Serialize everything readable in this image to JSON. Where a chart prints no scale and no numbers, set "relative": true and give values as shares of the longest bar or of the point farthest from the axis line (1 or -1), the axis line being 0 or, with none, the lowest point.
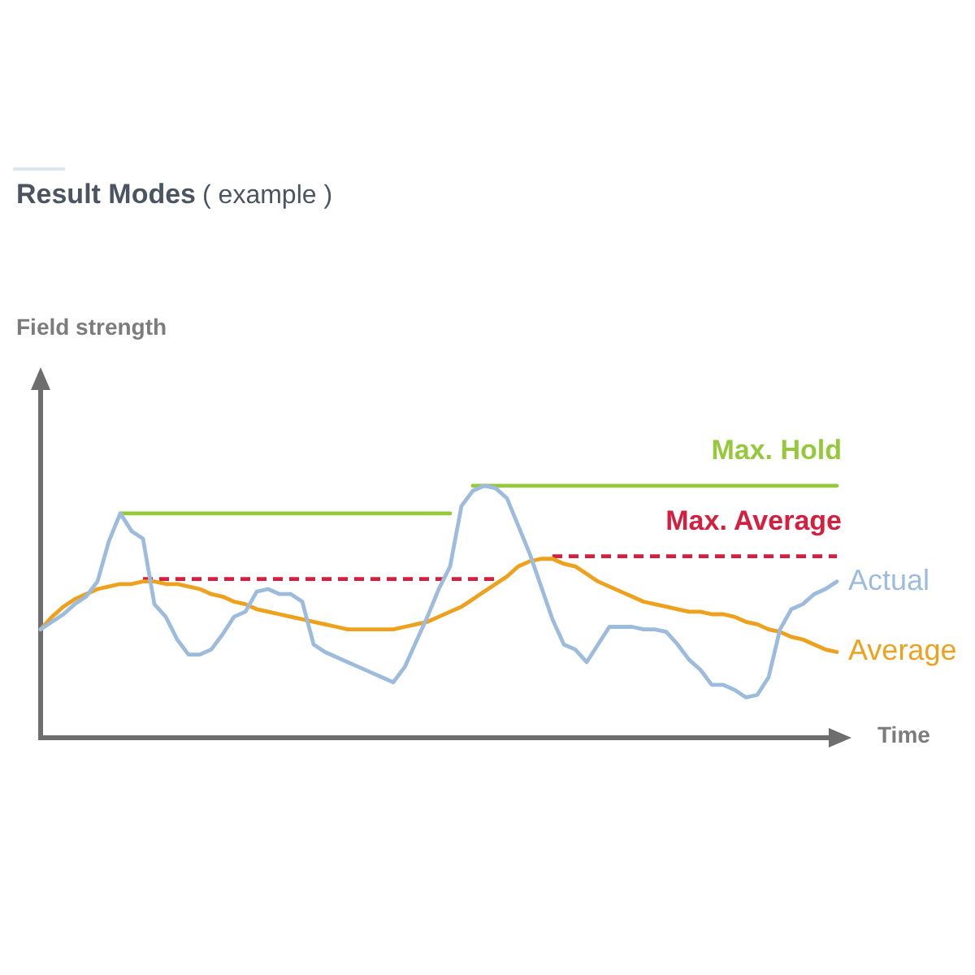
{
  "chart_data": {
    "type": "line",
    "title": "Result Modes",
    "subtitle": "( example )",
    "xlabel": "Time",
    "annotations": [
      "Field strength"
    ],
    "relative": true,
    "marker": "none",
    "categories": [
      null,
      null,
      null,
      null,
      null,
      null,
      null,
      null,
      null,
      null,
      null,
      null,
      null,
      null,
      null,
      null,
      null,
      null,
      null,
      null,
      null,
      null,
      null,
      null,
      null,
      null,
      null,
      null,
      null,
      null,
      null,
      null,
      null,
      null,
      null,
      null,
      null,
      null,
      null,
      null,
      null,
      null,
      null,
      null,
      null,
      null,
      null,
      null,
      null,
      null,
      null,
      null,
      null,
      null,
      null,
      null,
      null,
      null,
      null,
      null,
      null,
      null,
      null,
      null,
      null,
      null,
      null,
      null,
      null,
      null,
      null
    ],
    "series": [
      {
        "name": "Actual",
        "color": "#9dbcdd",
        "values": [
          0.43,
          0.46,
          0.49,
          0.53,
          0.56,
          0.62,
          0.78,
          0.89,
          0.82,
          0.79,
          0.53,
          0.48,
          0.39,
          0.33,
          0.33,
          0.35,
          0.41,
          0.48,
          0.5,
          0.58,
          0.59,
          0.57,
          0.57,
          0.54,
          0.37,
          0.34,
          0.32,
          0.3,
          0.28,
          0.26,
          0.24,
          0.22,
          0.28,
          0.38,
          0.48,
          0.59,
          0.68,
          0.92,
          0.98,
          1.0,
          0.99,
          0.95,
          0.84,
          0.73,
          0.6,
          0.47,
          0.37,
          0.35,
          0.3,
          0.37,
          0.44,
          0.44,
          0.44,
          0.43,
          0.43,
          0.42,
          0.37,
          0.31,
          0.27,
          0.21,
          0.21,
          0.19,
          0.16,
          0.17,
          0.24,
          0.43,
          0.51,
          0.53,
          0.57,
          0.59,
          0.62
        ]
      },
      {
        "name": "Average",
        "color": "#eda11d",
        "values": [
          0.43,
          0.48,
          0.52,
          0.55,
          0.57,
          0.59,
          0.6,
          0.61,
          0.61,
          0.62,
          0.62,
          0.61,
          0.61,
          0.6,
          0.59,
          0.57,
          0.56,
          0.54,
          0.53,
          0.51,
          0.5,
          0.49,
          0.48,
          0.47,
          0.46,
          0.45,
          0.44,
          0.43,
          0.43,
          0.43,
          0.43,
          0.43,
          0.44,
          0.45,
          0.46,
          0.48,
          0.5,
          0.52,
          0.55,
          0.58,
          0.61,
          0.64,
          0.68,
          0.7,
          0.71,
          0.71,
          0.69,
          0.68,
          0.65,
          0.62,
          0.6,
          0.58,
          0.56,
          0.54,
          0.53,
          0.52,
          0.51,
          0.5,
          0.5,
          0.49,
          0.49,
          0.48,
          0.46,
          0.45,
          0.43,
          0.42,
          0.4,
          0.39,
          0.37,
          0.35,
          0.34
        ]
      },
      {
        "name": "Max. Hold",
        "color": "#95c93b",
        "values": [
          null,
          null,
          null,
          null,
          null,
          null,
          null,
          0.89,
          0.89,
          0.89,
          0.89,
          0.89,
          0.89,
          0.89,
          0.89,
          0.89,
          0.89,
          0.89,
          0.89,
          0.89,
          0.89,
          0.89,
          0.89,
          0.89,
          0.89,
          0.89,
          0.89,
          0.89,
          0.89,
          0.89,
          0.89,
          0.89,
          0.89,
          0.89,
          0.89,
          0.89,
          0.89,
          null,
          1,
          1,
          1,
          1,
          1,
          1,
          1,
          1,
          1,
          1,
          1,
          1,
          1,
          1,
          1,
          1,
          1,
          1,
          1,
          1,
          1,
          1,
          1,
          1,
          1,
          1,
          1,
          1,
          1,
          1,
          1,
          1,
          1
        ]
      },
      {
        "name": "Max. Average",
        "color": "#d4203f",
        "line_style": "dashed",
        "values": [
          null,
          null,
          null,
          null,
          null,
          null,
          null,
          null,
          null,
          0.63,
          0.63,
          0.63,
          0.63,
          0.63,
          0.63,
          0.63,
          0.63,
          0.63,
          0.63,
          0.63,
          0.63,
          0.63,
          0.63,
          0.63,
          0.63,
          0.63,
          0.63,
          0.63,
          0.63,
          0.63,
          0.63,
          0.63,
          0.63,
          0.63,
          0.63,
          0.63,
          0.63,
          0.63,
          0.63,
          0.63,
          0.63,
          null,
          null,
          null,
          null,
          0.72,
          0.72,
          0.72,
          0.72,
          0.72,
          0.72,
          0.72,
          0.72,
          0.72,
          0.72,
          0.72,
          0.72,
          0.72,
          0.72,
          0.72,
          0.72,
          0.72,
          0.72,
          0.72,
          0.72,
          0.72,
          0.72,
          0.72,
          0.72,
          0.72,
          0.72
        ]
      }
    ]
  }
}
